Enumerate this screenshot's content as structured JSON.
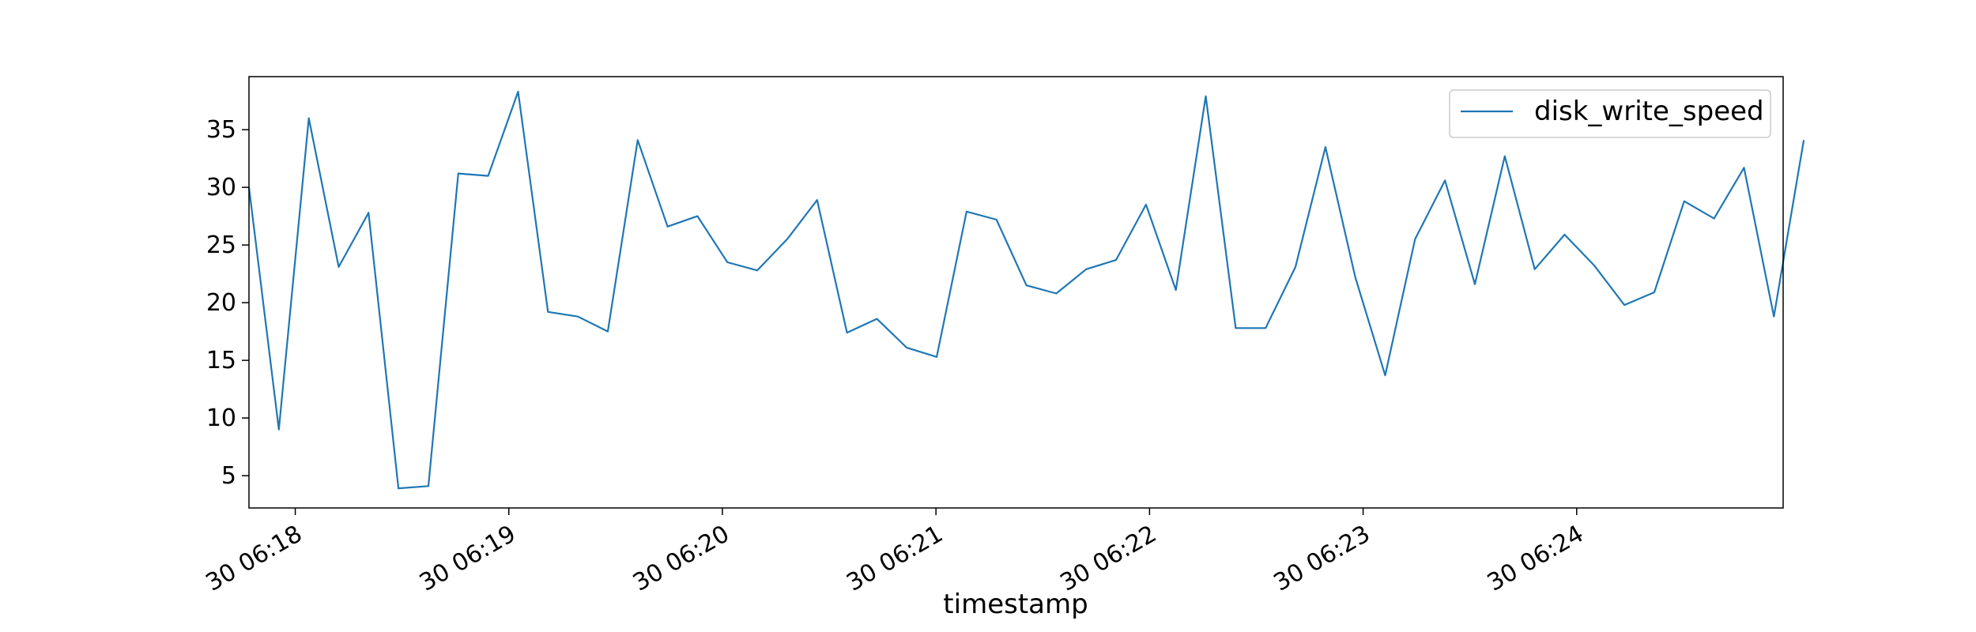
{
  "chart_data": {
    "type": "line",
    "title": "",
    "xlabel": "timestamp",
    "ylabel": "",
    "ylim": [
      2.2,
      39.6
    ],
    "xlim": [
      "30 06:17:47",
      "30 06:24:58"
    ],
    "grid": false,
    "legend": "top-right",
    "x_tick_labels": [
      "30 06:18",
      "30 06:19",
      "30 06:20",
      "30 06:21",
      "30 06:22",
      "30 06:23",
      "30 06:24"
    ],
    "y_ticks": [
      5,
      10,
      15,
      20,
      25,
      30,
      35
    ],
    "series": [
      {
        "name": "disk_write_speed",
        "color": "#1f77b4",
        "x_start": "30 06:17:47",
        "x_step_seconds": 8.4,
        "values": [
          30.0,
          9.0,
          36.0,
          23.1,
          27.8,
          3.9,
          4.1,
          31.2,
          31.0,
          38.3,
          19.2,
          18.8,
          17.5,
          34.1,
          26.6,
          27.5,
          23.5,
          22.8,
          25.5,
          28.9,
          17.4,
          18.6,
          16.1,
          15.3,
          27.9,
          27.2,
          21.5,
          20.8,
          22.9,
          23.7,
          28.5,
          21.1,
          37.9,
          17.8,
          17.8,
          23.1,
          33.5,
          22.2,
          13.7,
          25.5,
          30.6,
          21.6,
          32.7,
          22.9,
          25.9,
          23.2,
          19.8,
          20.9,
          28.8,
          27.3,
          31.7,
          18.8,
          34.1
        ]
      }
    ]
  }
}
